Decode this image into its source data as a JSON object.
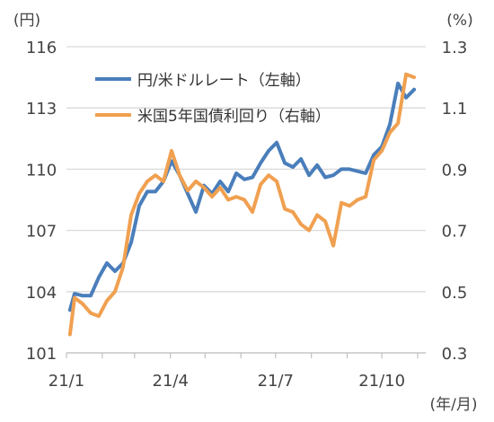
{
  "chart_data": {
    "type": "line",
    "xlabel": "(年/月)",
    "x_ticks": [
      "21/1",
      "21/4",
      "21/7",
      "21/10"
    ],
    "left_axis": {
      "unit_label": "(円)",
      "ylim": [
        101,
        116
      ],
      "ticks": [
        "101",
        "104",
        "107",
        "110",
        "113",
        "116"
      ]
    },
    "right_axis": {
      "unit_label": "(%)",
      "ylim": [
        0.3,
        1.3
      ],
      "ticks": [
        "0.3",
        "0.5",
        "0.7",
        "0.9",
        "1.1",
        "1.3"
      ]
    },
    "grid": "horizontal",
    "legend_position": "top-center",
    "series": [
      {
        "name": "円/米ドルレート（左軸）",
        "axis": "left",
        "color": "#4a7ebb",
        "x": [
          "2021-01-04",
          "2021-01-08",
          "2021-01-15",
          "2021-01-22",
          "2021-01-29",
          "2021-02-05",
          "2021-02-12",
          "2021-02-19",
          "2021-02-26",
          "2021-03-05",
          "2021-03-12",
          "2021-03-19",
          "2021-03-26",
          "2021-04-02",
          "2021-04-09",
          "2021-04-16",
          "2021-04-23",
          "2021-04-30",
          "2021-05-07",
          "2021-05-14",
          "2021-05-21",
          "2021-05-28",
          "2021-06-04",
          "2021-06-11",
          "2021-06-18",
          "2021-06-25",
          "2021-07-02",
          "2021-07-09",
          "2021-07-16",
          "2021-07-23",
          "2021-07-30",
          "2021-08-06",
          "2021-08-13",
          "2021-08-20",
          "2021-08-27",
          "2021-09-03",
          "2021-09-10",
          "2021-09-17",
          "2021-09-24",
          "2021-10-01",
          "2021-10-08",
          "2021-10-15",
          "2021-10-22",
          "2021-10-29"
        ],
        "values": [
          103.1,
          103.9,
          103.8,
          103.8,
          104.7,
          105.4,
          105.0,
          105.4,
          106.4,
          108.2,
          108.9,
          108.9,
          109.4,
          110.4,
          109.7,
          108.8,
          107.9,
          109.2,
          108.8,
          109.4,
          108.9,
          109.8,
          109.5,
          109.6,
          110.3,
          110.9,
          111.3,
          110.3,
          110.1,
          110.5,
          109.7,
          110.2,
          109.6,
          109.7,
          110.0,
          110.0,
          109.9,
          109.8,
          110.7,
          111.1,
          112.2,
          114.2,
          113.5,
          113.9
        ]
      },
      {
        "name": "米国5年国債利回り（右軸）",
        "axis": "right",
        "color": "#f0a050",
        "x": [
          "2021-01-04",
          "2021-01-08",
          "2021-01-15",
          "2021-01-22",
          "2021-01-29",
          "2021-02-05",
          "2021-02-12",
          "2021-02-19",
          "2021-02-26",
          "2021-03-05",
          "2021-03-12",
          "2021-03-19",
          "2021-03-26",
          "2021-04-02",
          "2021-04-09",
          "2021-04-16",
          "2021-04-23",
          "2021-04-30",
          "2021-05-07",
          "2021-05-14",
          "2021-05-21",
          "2021-05-28",
          "2021-06-04",
          "2021-06-11",
          "2021-06-18",
          "2021-06-25",
          "2021-07-02",
          "2021-07-09",
          "2021-07-16",
          "2021-07-23",
          "2021-07-30",
          "2021-08-06",
          "2021-08-13",
          "2021-08-20",
          "2021-08-27",
          "2021-09-03",
          "2021-09-10",
          "2021-09-17",
          "2021-09-24",
          "2021-10-01",
          "2021-10-08",
          "2021-10-15",
          "2021-10-22",
          "2021-10-29"
        ],
        "values": [
          0.36,
          0.48,
          0.46,
          0.43,
          0.42,
          0.47,
          0.5,
          0.58,
          0.75,
          0.82,
          0.86,
          0.88,
          0.86,
          0.96,
          0.88,
          0.83,
          0.86,
          0.84,
          0.81,
          0.84,
          0.8,
          0.81,
          0.8,
          0.76,
          0.85,
          0.88,
          0.86,
          0.77,
          0.76,
          0.72,
          0.7,
          0.75,
          0.73,
          0.65,
          0.79,
          0.78,
          0.8,
          0.81,
          0.93,
          0.96,
          1.02,
          1.05,
          1.21,
          1.2
        ]
      }
    ]
  }
}
